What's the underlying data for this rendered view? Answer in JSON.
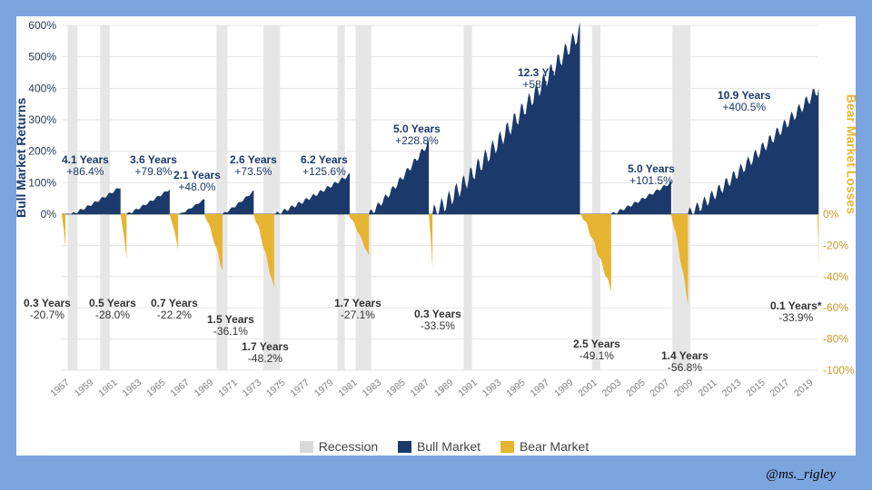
{
  "credit": "@ms._rigley",
  "left_axis_label": "Bull Market Returns",
  "right_axis_label": "Bear Market Losses",
  "legend": {
    "recession": "Recession",
    "bull": "Bull Market",
    "bear": "Bear Market"
  },
  "chart": {
    "background_color": "#ffffff",
    "frame_color": "#7ca5e0",
    "bull_color": "#1b3a6b",
    "bear_color": "#e6b430",
    "recession_color": "#e0e0e0",
    "grid_color": "#e5e5e5",
    "left_tick_color": "#2b3a55",
    "right_tick_color": "#c89a2a",
    "xtick_color": "#808080",
    "font_family": "Arial",
    "label_fontsize": 14,
    "tick_fontsize": 12,
    "xtick_fontsize": 10.5,
    "annot_fontsize": 12,
    "x_start": 1957,
    "x_end": 2020,
    "top_ylim": [
      0,
      600
    ],
    "top_tick_step": 100,
    "bottom_ylim": [
      -100,
      0
    ],
    "bottom_tick_step": 20,
    "x_ticks": [
      1957,
      1959,
      1961,
      1963,
      1965,
      1967,
      1969,
      1971,
      1973,
      1975,
      1977,
      1979,
      1981,
      1983,
      1985,
      1987,
      1989,
      1991,
      1993,
      1995,
      1997,
      1999,
      2001,
      2003,
      2005,
      2007,
      2009,
      2011,
      2013,
      2015,
      2017,
      2019
    ],
    "recessions": [
      [
        1957.5,
        1958.3
      ],
      [
        1960.2,
        1961.0
      ],
      [
        1969.9,
        1970.8
      ],
      [
        1973.8,
        1975.2
      ],
      [
        1980.0,
        1980.6
      ],
      [
        1981.5,
        1982.8
      ],
      [
        1990.5,
        1991.2
      ],
      [
        2001.2,
        2001.9
      ],
      [
        2007.9,
        2009.4
      ]
    ],
    "bull": [
      {
        "start": 1957.8,
        "years": 4.1,
        "pct": 86.4,
        "lab_yrs": "4.1 Years",
        "lab_pct": "+86.4%",
        "aX": 0,
        "aY": 142
      },
      {
        "start": 1962.4,
        "years": 3.6,
        "pct": 79.8,
        "lab_yrs": "3.6 Years",
        "lab_pct": "+79.8%",
        "aX": 75,
        "aY": 142
      },
      {
        "start": 1966.8,
        "years": 2.1,
        "pct": 48.0,
        "lab_yrs": "2.1 Years",
        "lab_pct": "+48.0%",
        "aX": 123,
        "aY": 159
      },
      {
        "start": 1970.4,
        "years": 2.6,
        "pct": 73.5,
        "lab_yrs": "2.6 Years",
        "lab_pct": "+73.5%",
        "aX": 185,
        "aY": 142
      },
      {
        "start": 1974.8,
        "years": 6.2,
        "pct": 125.6,
        "lab_yrs": "6.2 Years",
        "lab_pct": "+125.6%",
        "aX": 263,
        "aY": 142
      },
      {
        "start": 1982.6,
        "years": 5.0,
        "pct": 228.8,
        "lab_yrs": "5.0 Years",
        "lab_pct": "+228.8%",
        "aX": 365,
        "aY": 108
      },
      {
        "start": 1987.9,
        "years": 12.3,
        "pct": 582.1,
        "lab_yrs": "12.3 Years",
        "lab_pct": "+582.1%",
        "aX": 502,
        "aY": 46
      },
      {
        "start": 2002.8,
        "years": 5.0,
        "pct": 101.5,
        "lab_yrs": "5.0 Years",
        "lab_pct": "+101.5%",
        "aX": 623,
        "aY": 152
      },
      {
        "start": 2009.2,
        "years": 10.9,
        "pct": 400.5,
        "lab_yrs": "10.9 Years",
        "lab_pct": "+400.5%",
        "aX": 722,
        "aY": 71
      }
    ],
    "bear": [
      {
        "start": 1957.0,
        "years": 0.3,
        "pct": -20.7,
        "lab_yrs": "0.3 Years",
        "lab_pct": "-20.7%",
        "aX": -42,
        "aY": 300
      },
      {
        "start": 1961.9,
        "years": 0.5,
        "pct": -28.0,
        "lab_yrs": "0.5 Years",
        "lab_pct": "-28.0%",
        "aX": 30,
        "aY": 300
      },
      {
        "start": 1966.0,
        "years": 0.7,
        "pct": -22.2,
        "lab_yrs": "0.7 Years",
        "lab_pct": "-22.2%",
        "aX": 98,
        "aY": 300
      },
      {
        "start": 1968.9,
        "years": 1.5,
        "pct": -36.1,
        "lab_yrs": "1.5 Years",
        "lab_pct": "-36.1%",
        "aX": 160,
        "aY": 318
      },
      {
        "start": 1973.0,
        "years": 1.7,
        "pct": -48.2,
        "lab_yrs": "1.7 Years",
        "lab_pct": "-48.2%",
        "aX": 198,
        "aY": 348
      },
      {
        "start": 1980.9,
        "years": 1.7,
        "pct": -27.1,
        "lab_yrs": "1.7 Years",
        "lab_pct": "-27.1%",
        "aX": 300,
        "aY": 300
      },
      {
        "start": 1987.6,
        "years": 0.3,
        "pct": -33.5,
        "lab_yrs": "0.3 Years",
        "lab_pct": "-33.5%",
        "aX": 388,
        "aY": 312
      },
      {
        "start": 2000.3,
        "years": 2.5,
        "pct": -49.1,
        "lab_yrs": "2.5 Years",
        "lab_pct": "-49.1%",
        "aX": 563,
        "aY": 345
      },
      {
        "start": 2007.8,
        "years": 1.4,
        "pct": -56.8,
        "lab_yrs": "1.4 Years",
        "lab_pct": "-56.8%",
        "aX": 660,
        "aY": 358
      },
      {
        "start": 2020.0,
        "years": 0.1,
        "pct": -33.9,
        "lab_yrs": "0.1 Years*",
        "lab_pct": "-33.9%",
        "aX": 780,
        "aY": 303
      }
    ]
  }
}
